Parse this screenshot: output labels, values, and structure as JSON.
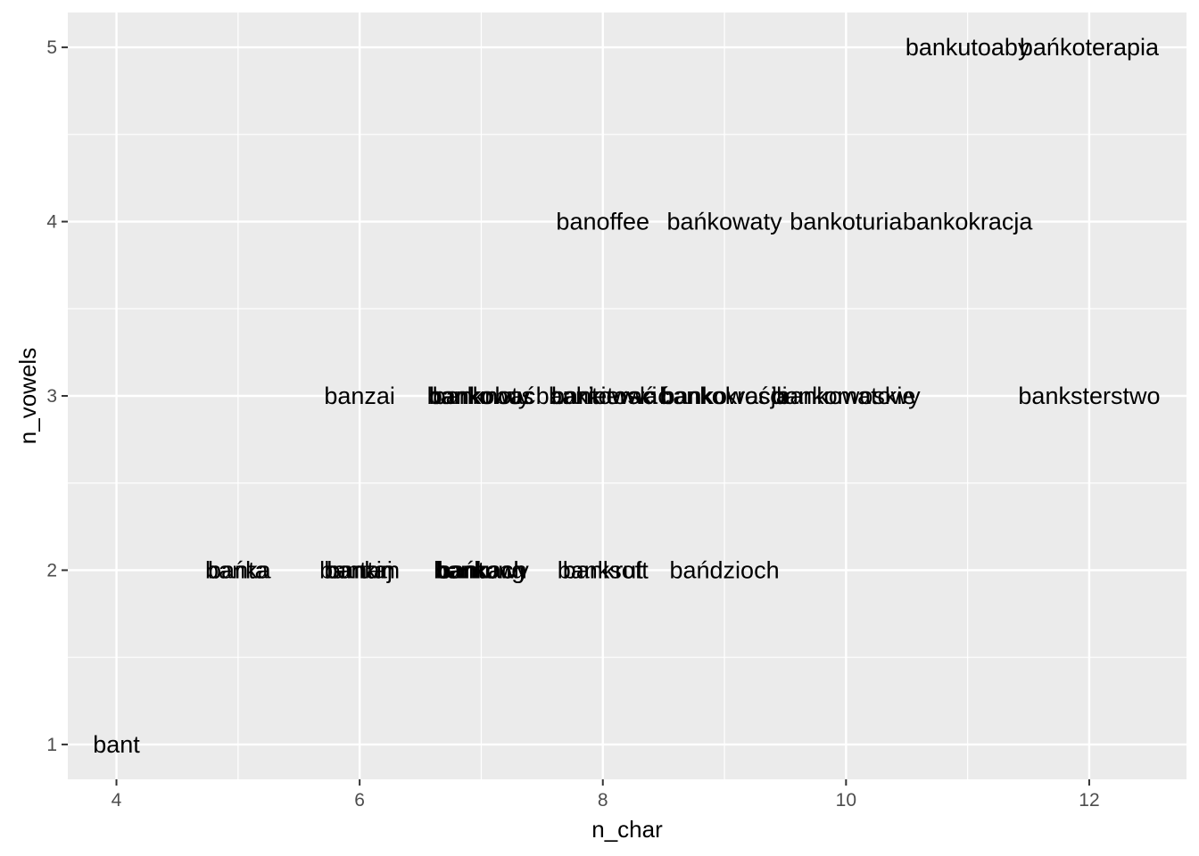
{
  "chart_data": {
    "type": "scatter",
    "geom": "text",
    "xlabel": "n_char",
    "ylabel": "n_vowels",
    "xlim": [
      3.6,
      12.8
    ],
    "ylim": [
      0.8,
      5.2
    ],
    "x_ticks": [
      4,
      6,
      8,
      10,
      12
    ],
    "y_ticks": [
      1,
      2,
      3,
      4,
      5
    ],
    "grid": true,
    "panel_color": "#ebebeb",
    "grid_color": "#ffffff",
    "points": [
      {
        "label": "bant",
        "x": 4,
        "y": 1
      },
      {
        "label": "bańka",
        "x": 5,
        "y": 2
      },
      {
        "label": "banta",
        "x": 5,
        "y": 2
      },
      {
        "label": "bantam",
        "x": 6,
        "y": 2
      },
      {
        "label": "bantaj",
        "x": 6,
        "y": 2
      },
      {
        "label": "bankin",
        "x": 6,
        "y": 2
      },
      {
        "label": "bańkach",
        "x": 7,
        "y": 2
      },
      {
        "label": "bankach",
        "x": 7,
        "y": 2
      },
      {
        "label": "bankowy",
        "x": 7,
        "y": 2
      },
      {
        "label": "bantung",
        "x": 7,
        "y": 2
      },
      {
        "label": "bankrut",
        "x": 8,
        "y": 2
      },
      {
        "label": "banksoft",
        "x": 8,
        "y": 2
      },
      {
        "label": "bańdzioch",
        "x": 9,
        "y": 2
      },
      {
        "label": "banzai",
        "x": 6,
        "y": 3
      },
      {
        "label": "bankować",
        "x": 7,
        "y": 3
      },
      {
        "label": "banknoty",
        "x": 7,
        "y": 3
      },
      {
        "label": "bankobus",
        "x": 7,
        "y": 3
      },
      {
        "label": "bantować",
        "x": 8,
        "y": 3
      },
      {
        "label": "bankierski",
        "x": 8,
        "y": 3
      },
      {
        "label": "bankietować",
        "x": 8,
        "y": 3
      },
      {
        "label": "bankowości",
        "x": 9,
        "y": 3
      },
      {
        "label": "bankokracja",
        "x": 9,
        "y": 3
      },
      {
        "label": "bankomatowy",
        "x": 10,
        "y": 3
      },
      {
        "label": "bankowoskie",
        "x": 10,
        "y": 3
      },
      {
        "label": "banksterstwo",
        "x": 12,
        "y": 3
      },
      {
        "label": "banoffee",
        "x": 8,
        "y": 4
      },
      {
        "label": "bańkowaty",
        "x": 9,
        "y": 4
      },
      {
        "label": "bankoturia",
        "x": 10,
        "y": 4
      },
      {
        "label": "bankokracja",
        "x": 11,
        "y": 4
      },
      {
        "label": "bankutoaby",
        "x": 11,
        "y": 5
      },
      {
        "label": "bańkoterapia",
        "x": 12,
        "y": 5
      }
    ]
  }
}
